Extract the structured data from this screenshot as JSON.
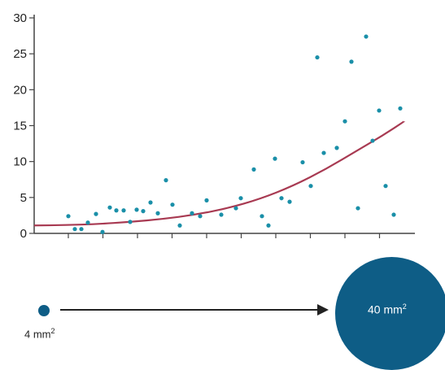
{
  "chart_data": {
    "type": "scatter",
    "title": "",
    "xlabel": "",
    "ylabel": "",
    "ylim": [
      0,
      30
    ],
    "yticks": [
      "0",
      "5",
      "10",
      "15",
      "20",
      "25",
      "30"
    ],
    "grid": false,
    "xlim": [
      0,
      540
    ],
    "points": [
      [
        84,
        2.4
      ],
      [
        92,
        0.6
      ],
      [
        100,
        0.6
      ],
      [
        108,
        1.5
      ],
      [
        118,
        2.7
      ],
      [
        126,
        0.2
      ],
      [
        135,
        3.6
      ],
      [
        143,
        3.2
      ],
      [
        152,
        3.2
      ],
      [
        160,
        1.6
      ],
      [
        168,
        3.3
      ],
      [
        176,
        3.1
      ],
      [
        185,
        4.3
      ],
      [
        194,
        2.8
      ],
      [
        204,
        7.4
      ],
      [
        212,
        4.0
      ],
      [
        221,
        1.1
      ],
      [
        236,
        2.8
      ],
      [
        246,
        2.4
      ],
      [
        254,
        4.6
      ],
      [
        272,
        2.6
      ],
      [
        290,
        3.5
      ],
      [
        296,
        4.9
      ],
      [
        312,
        8.9
      ],
      [
        322,
        2.4
      ],
      [
        330,
        1.1
      ],
      [
        338,
        10.4
      ],
      [
        346,
        4.9
      ],
      [
        356,
        4.4
      ],
      [
        372,
        9.9
      ],
      [
        382,
        6.6
      ],
      [
        390,
        24.5
      ],
      [
        398,
        11.2
      ],
      [
        414,
        11.9
      ],
      [
        424,
        15.6
      ],
      [
        432,
        23.9
      ],
      [
        440,
        3.5
      ],
      [
        450,
        27.4
      ],
      [
        458,
        12.9
      ],
      [
        466,
        17.1
      ],
      [
        474,
        6.6
      ],
      [
        484,
        2.6
      ],
      [
        492,
        17.4
      ]
    ],
    "trend": [
      [
        42,
        1.1
      ],
      [
        80,
        1.15
      ],
      [
        120,
        1.3
      ],
      [
        160,
        1.6
      ],
      [
        200,
        2.0
      ],
      [
        240,
        2.6
      ],
      [
        280,
        3.5
      ],
      [
        320,
        4.8
      ],
      [
        360,
        6.6
      ],
      [
        400,
        8.9
      ],
      [
        440,
        11.6
      ],
      [
        470,
        13.6
      ],
      [
        497,
        15.6
      ]
    ],
    "colors": {
      "points": "#1a8fa8",
      "trend": "#a83a52",
      "axis": "#444444"
    }
  },
  "size_comparison": {
    "small_label": "4 mm",
    "small_exp": "2",
    "large_label": "40 mm",
    "large_exp": "2",
    "circle_color": "#0e5d86",
    "arrow_color": "#222222"
  }
}
